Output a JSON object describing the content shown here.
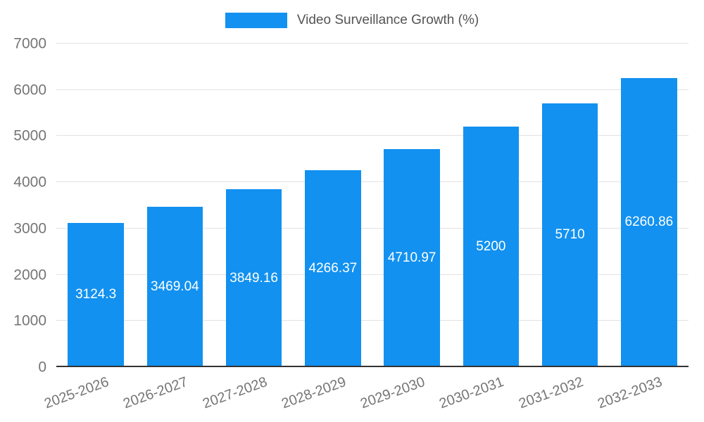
{
  "chart_data": {
    "type": "bar",
    "title": "Video Surveillance Growth (%)",
    "categories": [
      "2025-2026",
      "2026-2027",
      "2027-2028",
      "2028-2029",
      "2029-2030",
      "2030-2031",
      "2031-2032",
      "2032-2033"
    ],
    "values": [
      3124.3,
      3469.04,
      3849.16,
      4266.37,
      4710.97,
      5200,
      5710,
      6260.86
    ],
    "value_labels": [
      "3124.3",
      "3469.04",
      "3849.16",
      "4266.37",
      "4710.97",
      "5200",
      "5710",
      "6260.86"
    ],
    "xlabel": "",
    "ylabel": "",
    "ylim": [
      0,
      7000
    ],
    "y_ticks": [
      0,
      1000,
      2000,
      3000,
      4000,
      5000,
      6000,
      7000
    ],
    "grid": true,
    "legend_position": "top",
    "colors": {
      "bar": "#1291f0",
      "value_label": "#ffffff",
      "axis_text": "#757575",
      "title_text": "#545454",
      "gridline": "#e2e2e2",
      "axis_line": "#333333"
    }
  }
}
